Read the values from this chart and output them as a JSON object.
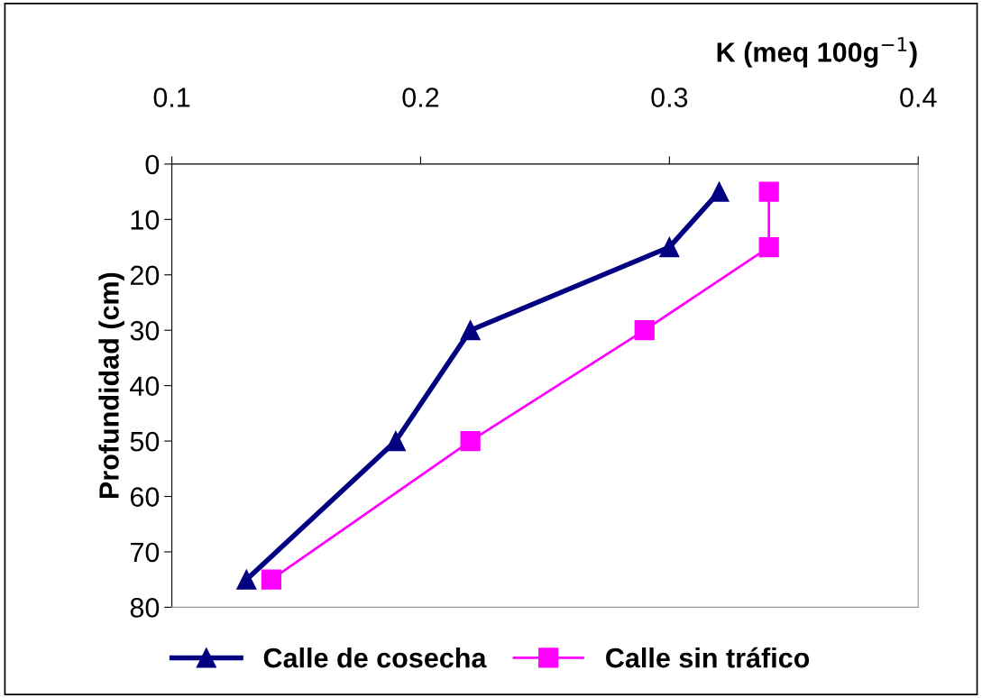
{
  "chart_data": {
    "type": "line",
    "xlabel": "K (meq 100g$^{−1}$)",
    "ylabel": "Profundidad (cm)",
    "xlim": [
      0.1,
      0.4
    ],
    "xticks": [
      0.1,
      0.2,
      0.3,
      0.4
    ],
    "ylim": [
      80,
      0
    ],
    "yticks": [
      0,
      10,
      20,
      30,
      40,
      50,
      60,
      70,
      80
    ],
    "grid": false,
    "legend": "bottom",
    "series": [
      {
        "name": "Calle de cosecha",
        "color": "#000080",
        "marker": "triangle",
        "x": [
          0.32,
          0.3,
          0.22,
          0.19,
          0.13
        ],
        "values": [
          5,
          15,
          30,
          50,
          75
        ]
      },
      {
        "name": "Calle sin tráfico",
        "color": "#ff00ff",
        "marker": "square",
        "x": [
          0.34,
          0.34,
          0.29,
          0.22,
          0.14
        ],
        "values": [
          5,
          15,
          30,
          50,
          75
        ]
      }
    ]
  }
}
